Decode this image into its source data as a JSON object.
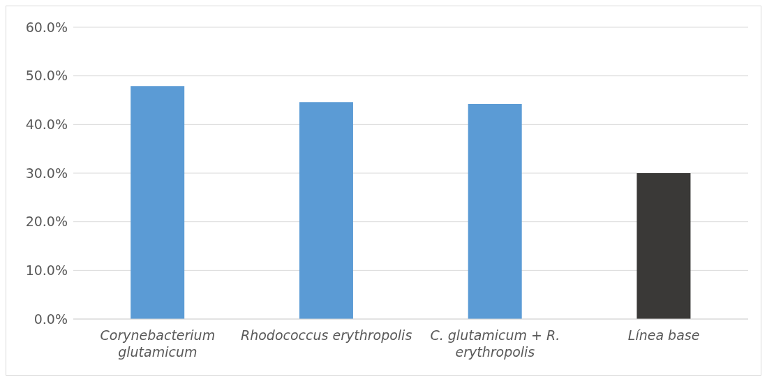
{
  "chart_data": {
    "type": "bar",
    "categories": [
      "Corynebacterium glutamicum",
      "Rhodococcus erythropolis",
      "C. glutamicum + R. erythropolis",
      "Línea base"
    ],
    "values": [
      47.9,
      44.6,
      44.2,
      30.0
    ],
    "colors": [
      "#5b9bd5",
      "#5b9bd5",
      "#5b9bd5",
      "#3a3937"
    ],
    "ylim": [
      0,
      60
    ],
    "yticks": [
      {
        "value": 0,
        "label": "0.0%"
      },
      {
        "value": 10,
        "label": "10.0%"
      },
      {
        "value": 20,
        "label": "20.0%"
      },
      {
        "value": 30,
        "label": "30.0%"
      },
      {
        "value": 40,
        "label": "40.0%"
      },
      {
        "value": 50,
        "label": "50.0%"
      },
      {
        "value": 60,
        "label": "60.0%"
      }
    ],
    "grid": "y"
  }
}
